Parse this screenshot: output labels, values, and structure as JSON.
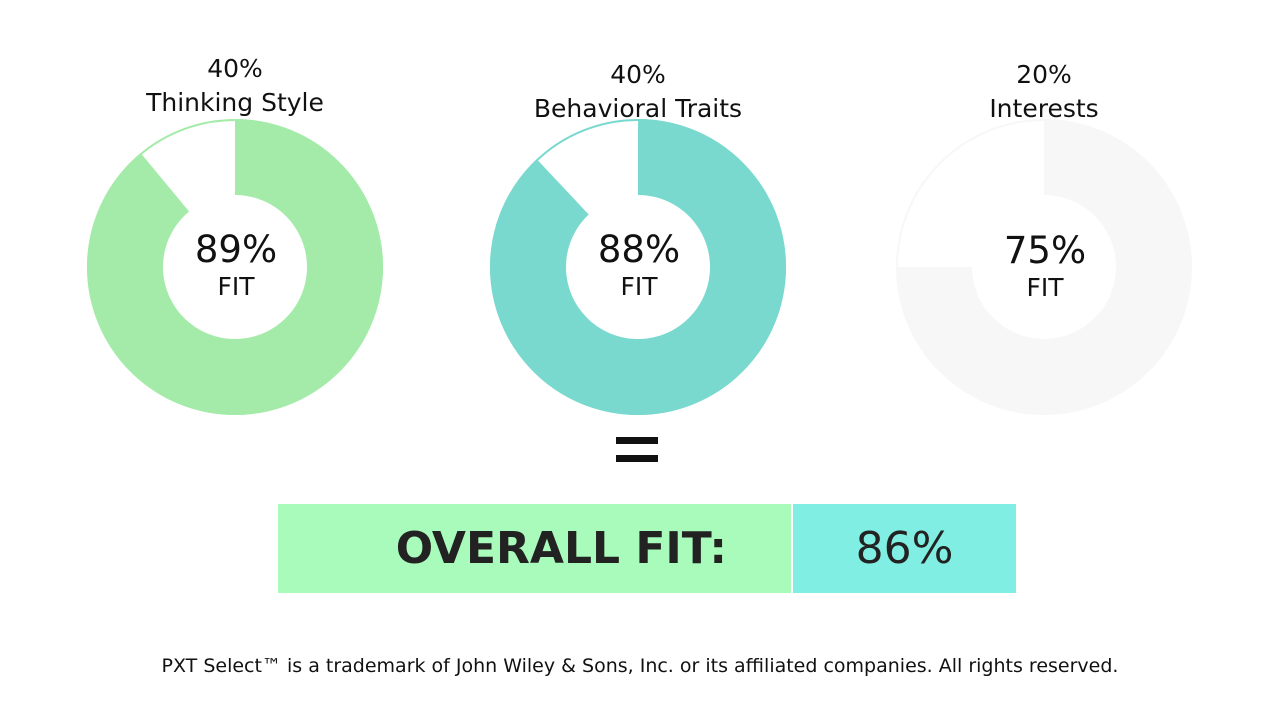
{
  "chart_data": {
    "type": "pie",
    "title": "",
    "charts": [
      {
        "weight_label": "40%",
        "name": "Thinking Style",
        "fit_value": 89,
        "fit_label": "89%",
        "sub_label": "FIT",
        "color": "#a4ebaa"
      },
      {
        "weight_label": "40%",
        "name": "Behavioral Traits",
        "fit_value": 88,
        "fit_label": "88%",
        "sub_label": "FIT",
        "color": "#7ad9cf"
      },
      {
        "weight_label": "20%",
        "name": "Interests",
        "fit_value": 75,
        "fit_label": "75%",
        "sub_label": "FIT",
        "color": "#f7f7f7"
      }
    ]
  },
  "equals_sign": "=",
  "overall": {
    "label": "OVERALL FIT:",
    "value": "86%"
  },
  "footer": "PXT Select™ is a trademark of John Wiley & Sons, Inc. or its affiliated companies. All rights reserved."
}
